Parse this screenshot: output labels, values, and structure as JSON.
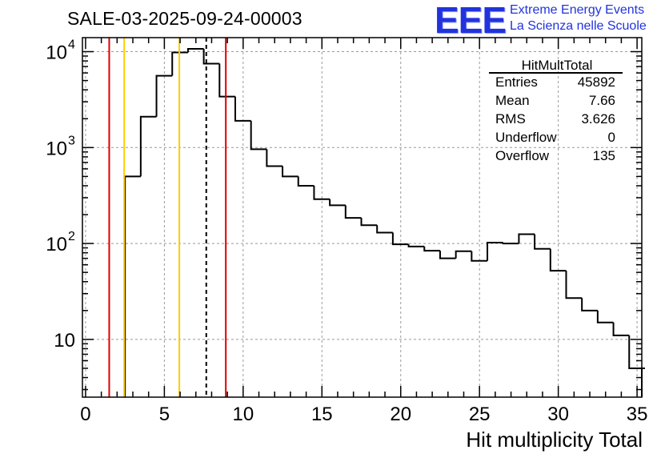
{
  "title": "SALE-03-2025-09-24-00003",
  "logo": {
    "mark": "EEE",
    "line1": "Extreme Energy Events",
    "line2": "La Scienza nelle Scuole",
    "color": "#2233dd"
  },
  "stats": {
    "title": "HitMultTotal",
    "rows": [
      {
        "label": "Entries",
        "value": "45892"
      },
      {
        "label": "Mean",
        "value": "7.66"
      },
      {
        "label": "RMS",
        "value": "3.626"
      },
      {
        "label": "Underflow",
        "value": "0"
      },
      {
        "label": "Overflow",
        "value": "135"
      }
    ]
  },
  "chart_data": {
    "type": "histogram",
    "xlabel": "Hit multiplicity Total",
    "ylabel": "",
    "xlim": [
      -0.2,
      35.3
    ],
    "ylim": [
      2.5,
      14000
    ],
    "yscale": "log",
    "grid": true,
    "bin_width": 1,
    "bins_x_start": [
      2.5,
      3.5,
      4.5,
      5.5,
      6.5,
      7.5,
      8.5,
      9.5,
      10.5,
      11.5,
      12.5,
      13.5,
      14.5,
      15.5,
      16.5,
      17.5,
      18.5,
      19.5,
      20.5,
      21.5,
      22.5,
      23.5,
      24.5,
      25.5,
      26.5,
      27.5,
      28.5,
      29.5,
      30.5,
      31.5,
      32.5,
      33.5,
      34.5
    ],
    "values": [
      500,
      2100,
      5600,
      9800,
      10700,
      7500,
      3400,
      1900,
      960,
      640,
      500,
      400,
      290,
      250,
      185,
      155,
      130,
      98,
      93,
      84,
      70,
      83,
      66,
      102,
      100,
      125,
      88,
      52,
      27,
      20,
      15,
      11,
      5
    ],
    "x_ticks": [
      0,
      5,
      10,
      15,
      20,
      25,
      30,
      35
    ],
    "x_tick_labels": [
      "0",
      "5",
      "10",
      "15",
      "20",
      "25",
      "30",
      "35"
    ],
    "y_ticks": [
      10,
      100,
      1000,
      10000
    ],
    "y_tick_labels": [
      "10",
      "10",
      "10",
      "10"
    ],
    "y_tick_exponents": [
      "",
      "2",
      "3",
      "4"
    ],
    "reference_lines": [
      {
        "x": 1.5,
        "color": "#dd0000",
        "style": "solid"
      },
      {
        "x": 2.45,
        "color": "#ffcc00",
        "style": "solid"
      },
      {
        "x": 5.95,
        "color": "#ffcc00",
        "style": "solid"
      },
      {
        "x": 7.66,
        "color": "#000000",
        "style": "dashed"
      },
      {
        "x": 8.9,
        "color": "#dd0000",
        "style": "solid"
      }
    ]
  }
}
